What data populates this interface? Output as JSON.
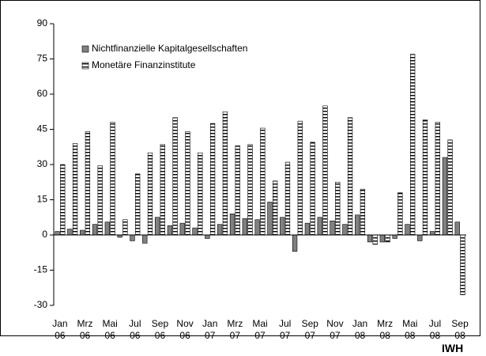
{
  "chart_data": {
    "type": "bar",
    "categories": [
      "Jan 06",
      null,
      "Mrz 06",
      null,
      "Mai 06",
      null,
      "Jul 06",
      null,
      "Sep 06",
      null,
      "Nov 06",
      null,
      "Jan 07",
      null,
      "Mrz 07",
      null,
      "Mai 07",
      null,
      "Jul 07",
      null,
      "Sep 07",
      null,
      "Nov 07",
      null,
      "Jan 08",
      null,
      "Mrz 08",
      null,
      "Mai 08",
      null,
      "Jul 08",
      null,
      "Sep 08"
    ],
    "series": [
      {
        "name": "Nichtfinanzielle Kapitalgesellschaften",
        "color": "#808080",
        "values": [
          1.5,
          2.5,
          2,
          4.5,
          5.5,
          -1,
          -2.5,
          -3.5,
          7.5,
          4,
          5,
          3,
          -1.5,
          4.5,
          9,
          7,
          6.5,
          14,
          7.5,
          -7,
          5,
          7.5,
          6,
          4.5,
          8.5,
          -3,
          -3,
          -1.5,
          4.5,
          -2.5,
          1.5,
          33,
          5.5
        ]
      },
      {
        "name": "Monetäre Finanzinstitute",
        "color": "#ffffff",
        "values": [
          30,
          39,
          44,
          29.5,
          48,
          6.5,
          26,
          35,
          38.5,
          50,
          44,
          35,
          47.5,
          52.5,
          38,
          38.5,
          45.5,
          23,
          31,
          48.5,
          39.5,
          55,
          22.5,
          50,
          19.5,
          -4,
          -3,
          18,
          77,
          49,
          48,
          40.5,
          -25.5
        ]
      }
    ],
    "ylim": [
      -30,
      90
    ],
    "yticks": [
      -30,
      -15,
      0,
      15,
      30,
      45,
      60,
      75,
      90
    ],
    "legend": "upper left",
    "source": "IWH"
  }
}
